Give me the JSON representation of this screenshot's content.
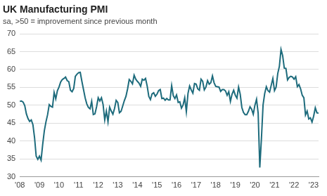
{
  "chart_data": {
    "type": "line",
    "title": "UK Manufacturing PMI",
    "subtitle": "sa, >50 = improvement since previous month",
    "categories": [
      "'08",
      null,
      null,
      null,
      null,
      null,
      null,
      null,
      null,
      null,
      null,
      null,
      "'09",
      null,
      null,
      null,
      null,
      null,
      null,
      null,
      null,
      null,
      null,
      null,
      "'10",
      null,
      null,
      null,
      null,
      null,
      null,
      null,
      null,
      null,
      null,
      null,
      "'11",
      null,
      null,
      null,
      null,
      null,
      null,
      null,
      null,
      null,
      null,
      null,
      "'12",
      null,
      null,
      null,
      null,
      null,
      null,
      null,
      null,
      null,
      null,
      null,
      "'13",
      null,
      null,
      null,
      null,
      null,
      null,
      null,
      null,
      null,
      null,
      null,
      "'14",
      null,
      null,
      null,
      null,
      null,
      null,
      null,
      null,
      null,
      null,
      null,
      "'15",
      null,
      null,
      null,
      null,
      null,
      null,
      null,
      null,
      null,
      null,
      null,
      "'16",
      null,
      null,
      null,
      null,
      null,
      null,
      null,
      null,
      null,
      null,
      null,
      "'17",
      null,
      null,
      null,
      null,
      null,
      null,
      null,
      null,
      null,
      null,
      null,
      "'18",
      null,
      null,
      null,
      null,
      null,
      null,
      null,
      null,
      null,
      null,
      null,
      "'19",
      null,
      null,
      null,
      null,
      null,
      null,
      null,
      null,
      null,
      null,
      null,
      "'20",
      null,
      null,
      null,
      null,
      null,
      null,
      null,
      null,
      null,
      null,
      null,
      "'21",
      null,
      null,
      null,
      null,
      null,
      null,
      null,
      null,
      null,
      null,
      null,
      "'22",
      null,
      null,
      null,
      null,
      null,
      null,
      null,
      null,
      null,
      null,
      null,
      "'23",
      null,
      null,
      null
    ],
    "values": [
      51.1,
      51.2,
      50.9,
      49.9,
      47.6,
      46.3,
      45.5,
      45.9,
      44.6,
      41.0,
      35.8,
      34.9,
      35.8,
      34.7,
      39.1,
      42.9,
      45.4,
      47.4,
      50.2,
      49.7,
      49.5,
      53.6,
      51.8,
      54.1,
      55.1,
      56.5,
      57.2,
      57.5,
      57.9,
      56.9,
      56.6,
      54.2,
      53.8,
      54.7,
      58.1,
      58.7,
      59.1,
      59.2,
      56.7,
      54.4,
      52.1,
      50.4,
      49.4,
      49.0,
      51.1,
      47.4,
      47.6,
      49.6,
      52.1,
      51.2,
      52.1,
      50.2,
      45.9,
      48.4,
      45.4,
      49.5,
      48.4,
      47.5,
      49.1,
      51.4,
      50.8,
      47.9,
      48.3,
      49.8,
      51.3,
      52.5,
      54.6,
      57.2,
      56.7,
      56.0,
      58.4,
      57.3,
      56.7,
      56.2,
      55.3,
      57.3,
      57.0,
      57.5,
      55.4,
      52.5,
      51.6,
      53.2,
      53.5,
      52.5,
      53.1,
      54.1,
      54.4,
      51.9,
      52.0,
      51.4,
      51.9,
      51.5,
      51.5,
      55.5,
      52.7,
      51.9,
      52.9,
      50.8,
      51.0,
      49.2,
      50.1,
      52.1,
      48.2,
      53.3,
      55.4,
      54.3,
      53.4,
      56.1,
      55.9,
      54.6,
      54.2,
      57.3,
      56.7,
      54.3,
      55.1,
      56.9,
      55.9,
      56.3,
      58.2,
      56.3,
      55.3,
      55.2,
      55.1,
      53.9,
      54.4,
      54.4,
      54.0,
      52.8,
      53.8,
      51.1,
      53.1,
      54.2,
      52.8,
      52.0,
      55.1,
      53.1,
      49.4,
      48.0,
      47.4,
      47.4,
      48.3,
      49.6,
      48.9,
      47.5,
      50.0,
      51.7,
      47.8,
      32.6,
      40.7,
      50.1,
      53.3,
      55.2,
      54.1,
      53.7,
      55.6,
      57.5,
      54.1,
      55.1,
      58.9,
      60.9,
      65.6,
      63.9,
      60.4,
      60.3,
      57.1,
      57.8,
      58.1,
      57.9,
      57.3,
      58.0,
      55.2,
      55.8,
      54.6,
      52.8,
      52.1,
      47.3,
      48.4,
      46.2,
      46.5,
      45.3,
      47.0,
      49.3,
      47.9,
      47.8
    ],
    "color": "#1d6b7c",
    "ylim": [
      30,
      70
    ],
    "yticks": [
      30,
      35,
      40,
      45,
      50,
      55,
      60,
      65,
      70
    ],
    "grid": true
  }
}
